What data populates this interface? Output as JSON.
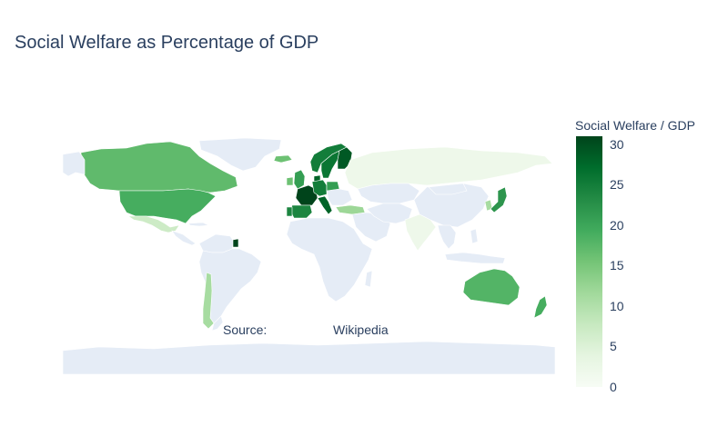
{
  "title": "Social Welfare as Percentage of GDP",
  "annotation": {
    "label": "Source:",
    "value": "Wikipedia"
  },
  "colorbar": {
    "title": "Social Welfare / GDP",
    "min": 0,
    "max": 31,
    "ticks": [
      "0",
      "5",
      "10",
      "15",
      "20",
      "25",
      "30"
    ],
    "tick_values": [
      0,
      5,
      10,
      15,
      20,
      25,
      30
    ],
    "color_low": "#f7fcf5",
    "color_high": "#00441b"
  },
  "colors": {
    "land_no_data": "#e5ecf6",
    "text": "#2a3f5f",
    "border": "#ffffff"
  },
  "map_data": {
    "type": "choropleth",
    "projection": "equirectangular",
    "regions": [
      {
        "name": "Canada",
        "value": 17
      },
      {
        "name": "United States",
        "value": 19
      },
      {
        "name": "Mexico",
        "value": 7
      },
      {
        "name": "Chile",
        "value": 11
      },
      {
        "name": "French Guiana",
        "value": 31
      },
      {
        "name": "France",
        "value": 31
      },
      {
        "name": "Germany",
        "value": 25
      },
      {
        "name": "Italy",
        "value": 28
      },
      {
        "name": "Spain",
        "value": 24
      },
      {
        "name": "Portugal",
        "value": 24
      },
      {
        "name": "United Kingdom",
        "value": 21
      },
      {
        "name": "Ireland",
        "value": 16
      },
      {
        "name": "Norway",
        "value": 25
      },
      {
        "name": "Sweden",
        "value": 26
      },
      {
        "name": "Finland",
        "value": 29
      },
      {
        "name": "Denmark",
        "value": 28
      },
      {
        "name": "Poland",
        "value": 21
      },
      {
        "name": "Iceland",
        "value": 16
      },
      {
        "name": "Russia",
        "value": 2
      },
      {
        "name": "Turkey",
        "value": 12
      },
      {
        "name": "India",
        "value": 2
      },
      {
        "name": "South Korea",
        "value": 11
      },
      {
        "name": "Japan",
        "value": 22
      },
      {
        "name": "Australia",
        "value": 18
      },
      {
        "name": "New Zealand",
        "value": 19
      }
    ]
  }
}
